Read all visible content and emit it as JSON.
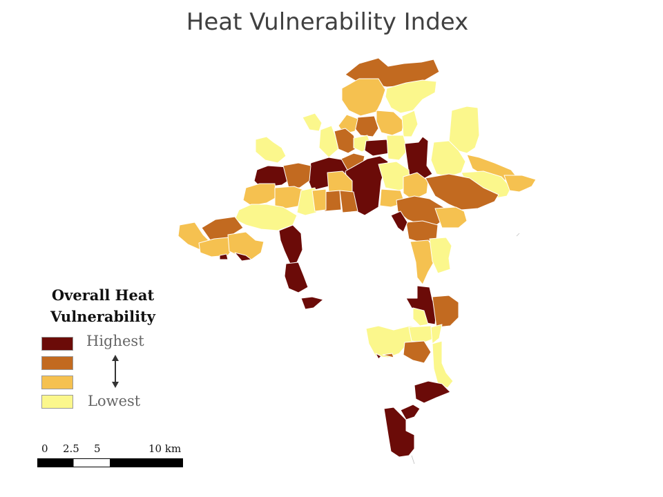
{
  "map": {
    "title": "Heat Vulnerability Index"
  },
  "colors": {
    "highest": "#6b0b08",
    "high": "#c26a20",
    "low": "#f5c150",
    "lowest": "#fbf78c",
    "boundary": "#ffffff"
  },
  "legend": {
    "title": "Overall Heat Vulnerability",
    "classes": [
      {
        "key": "highest",
        "label": "Highest"
      },
      {
        "key": "high",
        "label": ""
      },
      {
        "key": "low",
        "label": ""
      },
      {
        "key": "lowest",
        "label": "Lowest"
      }
    ]
  },
  "scale_bar": {
    "ticks": [
      "0",
      "2.5",
      "5",
      "10 km"
    ]
  }
}
